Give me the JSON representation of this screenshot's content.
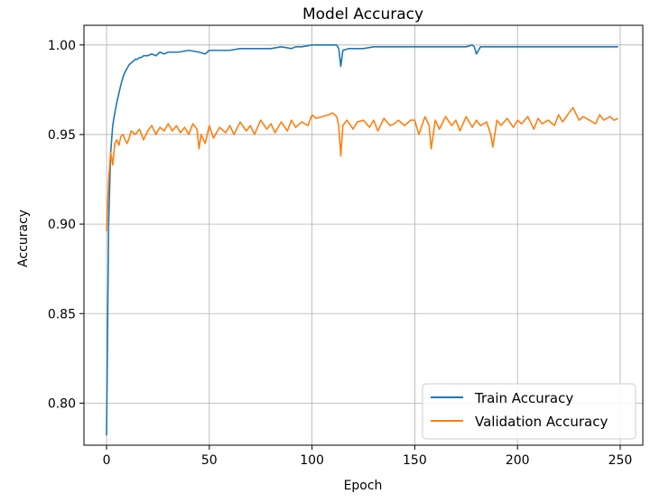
{
  "chart_data": {
    "type": "line",
    "title": "Model Accuracy",
    "xlabel": "Epoch",
    "ylabel": "Accuracy",
    "xlim": [
      -11,
      261
    ],
    "ylim": [
      0.7765,
      1.011
    ],
    "grid": true,
    "legend_placement": "lower-right",
    "x_ticks": [
      0,
      50,
      100,
      150,
      200,
      250
    ],
    "y_ticks": [
      0.8,
      0.85,
      0.9,
      0.95,
      1.0
    ],
    "x_tick_labels": [
      "0",
      "50",
      "100",
      "150",
      "200",
      "250"
    ],
    "y_tick_labels": [
      "0.80",
      "0.85",
      "0.90",
      "0.95",
      "1.00"
    ],
    "series_colors": {
      "Train Accuracy": "#1f77b4",
      "Validation Accuracy": "#ff7f0e"
    },
    "series": [
      {
        "name": "Train Accuracy",
        "x": [
          0,
          1,
          2,
          3,
          4,
          5,
          6,
          7,
          8,
          9,
          10,
          11,
          12,
          13,
          14,
          15,
          16,
          17,
          18,
          19,
          20,
          22,
          24,
          26,
          28,
          30,
          35,
          40,
          45,
          48,
          50,
          55,
          60,
          65,
          70,
          75,
          80,
          85,
          90,
          92,
          95,
          100,
          102,
          105,
          108,
          110,
          111,
          112,
          113,
          114,
          115,
          118,
          120,
          125,
          130,
          140,
          150,
          160,
          170,
          175,
          178,
          179,
          180,
          182,
          185,
          190,
          200,
          210,
          220,
          230,
          240,
          249
        ],
        "y": [
          0.782,
          0.9,
          0.94,
          0.955,
          0.962,
          0.968,
          0.973,
          0.978,
          0.982,
          0.985,
          0.987,
          0.989,
          0.99,
          0.991,
          0.992,
          0.992,
          0.993,
          0.993,
          0.994,
          0.994,
          0.994,
          0.995,
          0.994,
          0.996,
          0.995,
          0.996,
          0.996,
          0.997,
          0.996,
          0.995,
          0.997,
          0.997,
          0.997,
          0.998,
          0.998,
          0.998,
          0.998,
          0.999,
          0.998,
          0.999,
          0.999,
          1.0,
          1.0,
          1.0,
          1.0,
          1.0,
          1.0,
          1.0,
          0.998,
          0.988,
          0.997,
          0.998,
          0.998,
          0.998,
          0.999,
          0.999,
          0.999,
          0.999,
          0.999,
          0.999,
          1.0,
          0.999,
          0.995,
          0.999,
          0.999,
          0.999,
          0.999,
          0.999,
          0.999,
          0.999,
          0.999,
          0.999
        ]
      },
      {
        "name": "Validation Accuracy",
        "x": [
          0,
          1,
          2,
          3,
          4,
          5,
          6,
          7,
          8,
          9,
          10,
          11,
          12,
          14,
          16,
          18,
          20,
          22,
          24,
          26,
          28,
          30,
          32,
          34,
          36,
          38,
          40,
          42,
          44,
          45,
          46,
          48,
          50,
          52,
          55,
          58,
          60,
          62,
          65,
          68,
          70,
          72,
          75,
          78,
          80,
          82,
          85,
          88,
          90,
          92,
          95,
          98,
          100,
          102,
          105,
          108,
          110,
          112,
          113,
          114,
          115,
          117,
          120,
          122,
          125,
          128,
          130,
          132,
          135,
          138,
          140,
          142,
          145,
          148,
          150,
          152,
          155,
          157,
          158,
          160,
          162,
          165,
          168,
          170,
          172,
          175,
          178,
          180,
          182,
          185,
          187,
          188,
          190,
          192,
          195,
          198,
          200,
          202,
          205,
          208,
          210,
          212,
          215,
          218,
          220,
          222,
          225,
          227,
          230,
          232,
          235,
          238,
          240,
          242,
          245,
          247,
          249
        ],
        "y": [
          0.896,
          0.925,
          0.94,
          0.933,
          0.945,
          0.947,
          0.944,
          0.949,
          0.95,
          0.947,
          0.945,
          0.948,
          0.952,
          0.95,
          0.953,
          0.947,
          0.952,
          0.955,
          0.95,
          0.954,
          0.952,
          0.956,
          0.952,
          0.955,
          0.951,
          0.954,
          0.95,
          0.956,
          0.953,
          0.942,
          0.95,
          0.945,
          0.955,
          0.948,
          0.954,
          0.951,
          0.955,
          0.95,
          0.957,
          0.952,
          0.955,
          0.95,
          0.958,
          0.953,
          0.956,
          0.951,
          0.957,
          0.952,
          0.958,
          0.954,
          0.957,
          0.955,
          0.961,
          0.959,
          0.96,
          0.961,
          0.962,
          0.96,
          0.955,
          0.938,
          0.955,
          0.958,
          0.953,
          0.957,
          0.958,
          0.954,
          0.958,
          0.952,
          0.959,
          0.955,
          0.956,
          0.958,
          0.955,
          0.958,
          0.958,
          0.95,
          0.96,
          0.955,
          0.942,
          0.958,
          0.953,
          0.96,
          0.955,
          0.958,
          0.952,
          0.96,
          0.954,
          0.958,
          0.955,
          0.957,
          0.95,
          0.943,
          0.958,
          0.955,
          0.959,
          0.954,
          0.958,
          0.956,
          0.96,
          0.953,
          0.959,
          0.956,
          0.958,
          0.955,
          0.961,
          0.957,
          0.962,
          0.965,
          0.958,
          0.96,
          0.958,
          0.956,
          0.961,
          0.958,
          0.96,
          0.958,
          0.959
        ]
      }
    ]
  }
}
